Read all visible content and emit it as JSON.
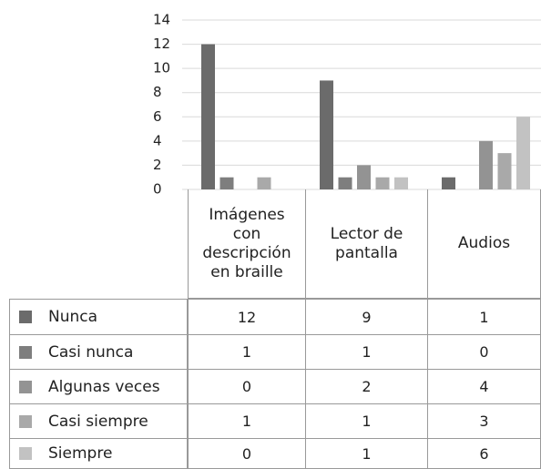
{
  "chart_data": {
    "type": "bar",
    "categories": [
      "Imágenes con descripción en braille",
      "Lector de pantalla",
      "Audios"
    ],
    "series": [
      {
        "name": "Nunca",
        "color": "#6b6b6b",
        "values": [
          12,
          9,
          1
        ]
      },
      {
        "name": "Casi nunca",
        "color": "#7e7e7e",
        "values": [
          1,
          1,
          0
        ]
      },
      {
        "name": "Algunas veces",
        "color": "#939393",
        "values": [
          0,
          2,
          4
        ]
      },
      {
        "name": "Casi siempre",
        "color": "#a9a9a9",
        "values": [
          1,
          1,
          3
        ]
      },
      {
        "name": "Siempre",
        "color": "#c2c2c2",
        "values": [
          0,
          1,
          6
        ]
      }
    ],
    "ylim": [
      0,
      14
    ],
    "yticks": [
      0,
      2,
      4,
      6,
      8,
      10,
      12,
      14
    ],
    "grid": true
  }
}
